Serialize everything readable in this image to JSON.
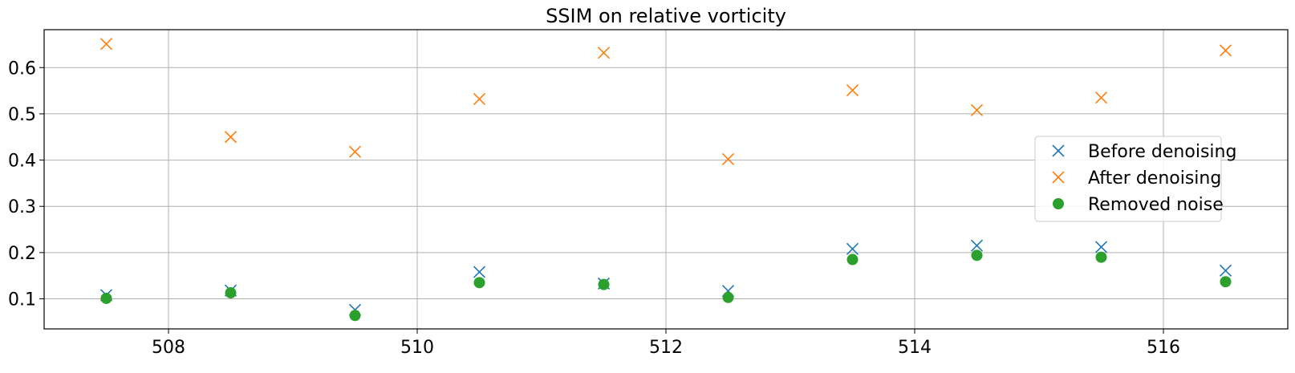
{
  "chart_data": {
    "type": "scatter",
    "title": "SSIM on relative vorticity",
    "xlabel": "",
    "ylabel": "",
    "xlim": [
      507.0,
      517.0
    ],
    "ylim": [
      0.035,
      0.682
    ],
    "x_ticks": [
      508,
      510,
      512,
      514,
      516
    ],
    "y_ticks": [
      0.1,
      0.2,
      0.3,
      0.4,
      0.5,
      0.6
    ],
    "x_tick_labels": [
      "508",
      "510",
      "512",
      "514",
      "516"
    ],
    "y_tick_labels": [
      "0.1",
      "0.2",
      "0.3",
      "0.4",
      "0.5",
      "0.6"
    ],
    "grid": true,
    "legend_position": "center-right",
    "x": [
      507.5,
      508.5,
      509.5,
      510.5,
      511.5,
      512.5,
      513.5,
      514.5,
      515.5,
      516.5
    ],
    "series": [
      {
        "name": "Before denoising",
        "marker": "x",
        "color": "#1f77b4",
        "values": [
          0.108,
          0.118,
          0.076,
          0.158,
          0.133,
          0.117,
          0.208,
          0.215,
          0.212,
          0.161
        ]
      },
      {
        "name": "After denoising",
        "marker": "x",
        "color": "#ff7f0e",
        "values": [
          0.651,
          0.45,
          0.418,
          0.532,
          0.632,
          0.402,
          0.551,
          0.508,
          0.535,
          0.637
        ]
      },
      {
        "name": "Removed noise",
        "marker": "circle",
        "color": "#2ca02c",
        "values": [
          0.101,
          0.113,
          0.064,
          0.135,
          0.131,
          0.103,
          0.185,
          0.194,
          0.19,
          0.137
        ]
      }
    ]
  }
}
